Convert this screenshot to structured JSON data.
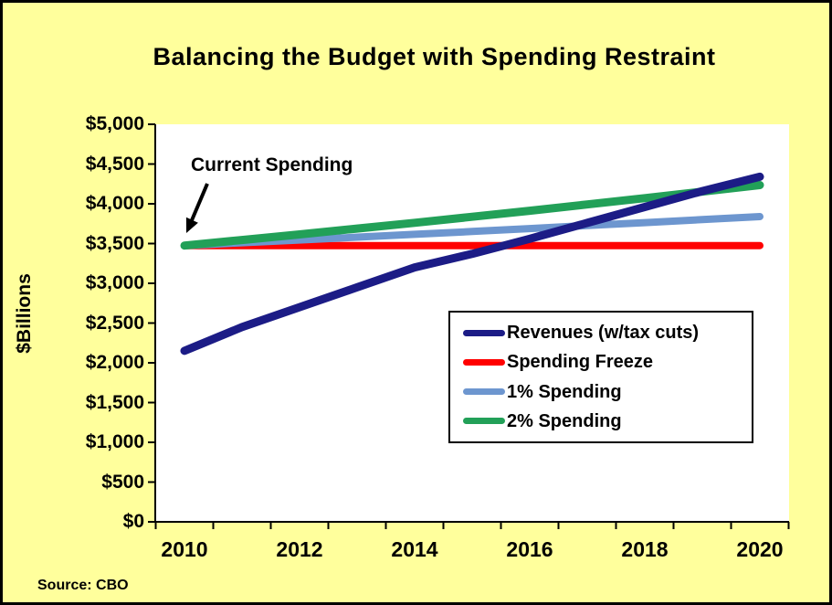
{
  "page": {
    "title": "Balancing the Budget with Spending Restraint",
    "source_label": "Source: CBO",
    "background_color": "#FFFF9C",
    "plot_background_color": "#FFFFFF"
  },
  "chart_data": {
    "type": "line",
    "title": "Balancing the Budget with Spending Restraint",
    "xlabel": "",
    "ylabel": "$Billions",
    "ylim": [
      0,
      5000
    ],
    "ytick_step": 500,
    "ytick_labels": [
      "$0",
      "$500",
      "$1,000",
      "$1,500",
      "$2,000",
      "$2,500",
      "$3,000",
      "$3,500",
      "$4,000",
      "$4,500",
      "$5,000"
    ],
    "x": [
      2010,
      2011,
      2012,
      2013,
      2014,
      2015,
      2016,
      2017,
      2018,
      2019,
      2020
    ],
    "xtick_labels": [
      "2010",
      "2012",
      "2014",
      "2016",
      "2018",
      "2020"
    ],
    "grid": false,
    "legend_position": "middle-right",
    "series": [
      {
        "name": "Revenues (w/tax cuts)",
        "color": "#1C1C86",
        "values": [
          2150,
          2450,
          2700,
          2950,
          3200,
          3370,
          3560,
          3760,
          3960,
          4160,
          4340
        ]
      },
      {
        "name": "Spending Freeze",
        "color": "#FF0000",
        "values": [
          3475,
          3475,
          3475,
          3475,
          3475,
          3475,
          3475,
          3475,
          3475,
          3475,
          3475
        ]
      },
      {
        "name": "1% Spending",
        "color": "#6D96CF",
        "values": [
          3475,
          3510,
          3545,
          3580,
          3616,
          3652,
          3689,
          3726,
          3763,
          3801,
          3839
        ]
      },
      {
        "name": "2% Spending",
        "color": "#22A058",
        "values": [
          3475,
          3545,
          3615,
          3688,
          3761,
          3837,
          3913,
          3992,
          4071,
          4153,
          4236
        ]
      }
    ],
    "annotation": {
      "text": "Current Spending",
      "points_to": {
        "x": 2010,
        "y": 3475
      }
    }
  }
}
